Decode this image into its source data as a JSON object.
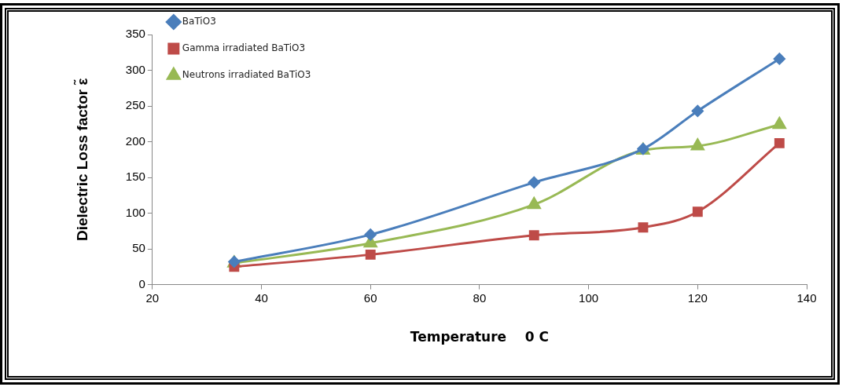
{
  "chart_data": {
    "type": "line",
    "xlabel": "Temperature    0 C",
    "ylabel": "Dielectric Loss factor ε̃",
    "x": [
      35,
      60,
      90,
      110,
      120,
      135
    ],
    "series": [
      {
        "name": "BaTiO3",
        "color": "#4a7ebb",
        "marker": "diamond",
        "values": [
          32,
          70,
          143,
          190,
          243,
          316
        ]
      },
      {
        "name": "Gamma irradiated BaTiO3",
        "color": "#be4b48",
        "marker": "square",
        "values": [
          25,
          42,
          69,
          80,
          102,
          198
        ]
      },
      {
        "name": "Neutrons irradiated BaTiO3",
        "color": "#98b954",
        "marker": "triangle",
        "values": [
          30,
          58,
          112,
          188,
          194,
          224
        ]
      }
    ],
    "xlim": [
      20,
      140
    ],
    "xticks": [
      20,
      40,
      60,
      80,
      100,
      120,
      140
    ],
    "ylim": [
      0,
      350
    ],
    "yticks": [
      0,
      50,
      100,
      150,
      200,
      250,
      300,
      350
    ],
    "grid": false,
    "legend": "top left",
    "line_style": "solid"
  }
}
